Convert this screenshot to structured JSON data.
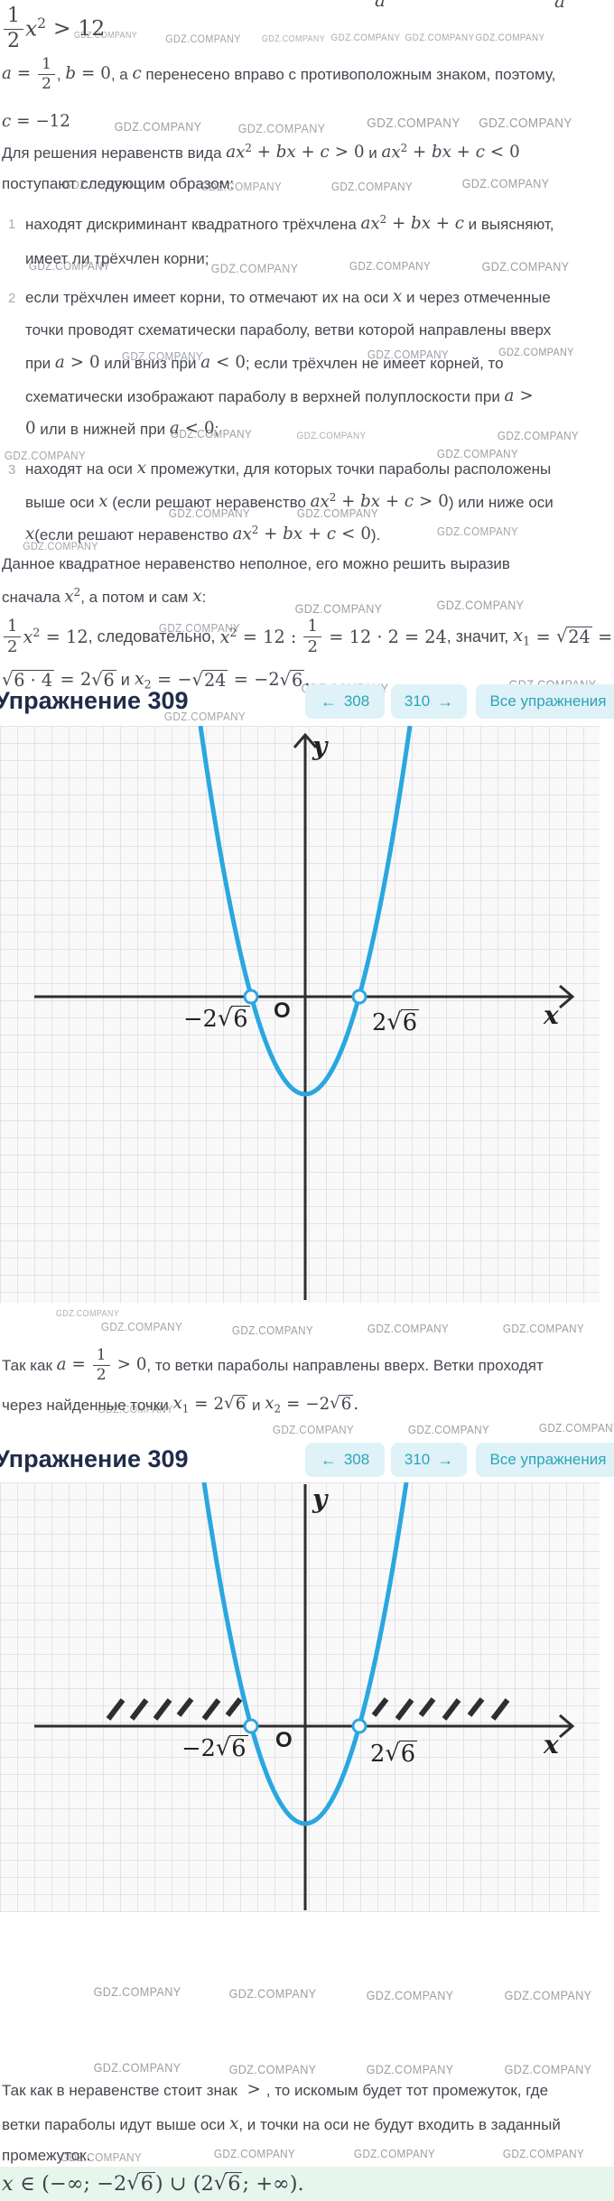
{
  "watermark": {
    "text": "GDZ.COMPANY"
  },
  "colors": {
    "parabola": "#2aa7e0",
    "button_bg": "#def2f7",
    "button_text": "#2ba4bb",
    "answer_bg": "#e7f6ed",
    "heading": "#202c49",
    "text": "#44484f",
    "axis": "#2e2e30",
    "watermark": "#84878c",
    "grid_line": "#e3e3e6",
    "graph_bg": "#f9f9fa"
  },
  "exercise": {
    "title": "Упражнение 309",
    "prev_arrow": "←",
    "prev": "308",
    "next": "310",
    "next_arrow": "→",
    "all_label": "Все упражнения"
  },
  "fragments": [
    "a",
    "a"
  ],
  "step_numbers": [
    "1",
    "2",
    "3"
  ],
  "text_lines": [
    {
      "segs": [
        {
          "k": "f",
          "n": "1",
          "d": "2"
        },
        {
          "k": "p",
          "b": "x",
          "e": "2"
        },
        {
          "k": "o",
          "v": ">"
        },
        {
          "k": "r",
          "v": "12"
        }
      ]
    },
    {
      "segs": [
        {
          "k": "m",
          "v": "a"
        },
        {
          "k": "o",
          "v": "="
        },
        {
          "k": "f",
          "n": "1",
          "d": "2"
        },
        {
          "k": "t",
          "v": ", "
        },
        {
          "k": "m",
          "v": "b"
        },
        {
          "k": "o",
          "v": "="
        },
        {
          "k": "r",
          "v": "0"
        },
        {
          "k": "t",
          "v": ", а "
        },
        {
          "k": "m",
          "v": "c"
        },
        {
          "k": "t",
          "v": " перенесено вправо с противоположным знаком, поэтому,"
        }
      ]
    },
    {
      "segs": [
        {
          "k": "m",
          "v": "c"
        },
        {
          "k": "o",
          "v": "="
        },
        {
          "k": "r",
          "v": "−12"
        }
      ]
    },
    {
      "segs": [
        {
          "k": "t",
          "v": "Для решения неравенств вида "
        },
        {
          "k": "m",
          "v": "a"
        },
        {
          "k": "p",
          "b": "x",
          "e": "2"
        },
        {
          "k": "r",
          "v": " + "
        },
        {
          "k": "m",
          "v": "bx"
        },
        {
          "k": "r",
          "v": " + "
        },
        {
          "k": "m",
          "v": "c"
        },
        {
          "k": "o",
          "v": ">"
        },
        {
          "k": "r",
          "v": "0"
        },
        {
          "k": "t",
          "v": " и "
        },
        {
          "k": "m",
          "v": "a"
        },
        {
          "k": "p",
          "b": "x",
          "e": "2"
        },
        {
          "k": "r",
          "v": " + "
        },
        {
          "k": "m",
          "v": "bx"
        },
        {
          "k": "r",
          "v": " + "
        },
        {
          "k": "m",
          "v": "c"
        },
        {
          "k": "o",
          "v": "<"
        },
        {
          "k": "r",
          "v": "0"
        }
      ]
    },
    {
      "segs": [
        {
          "k": "t",
          "v": "поступают следующим образом:"
        }
      ]
    },
    {
      "segs": [
        {
          "k": "t",
          "v": "находят дискриминант квадратного трёхчлена "
        },
        {
          "k": "m",
          "v": "a"
        },
        {
          "k": "p",
          "b": "x",
          "e": "2"
        },
        {
          "k": "r",
          "v": " + "
        },
        {
          "k": "m",
          "v": "bx"
        },
        {
          "k": "r",
          "v": " + "
        },
        {
          "k": "m",
          "v": "c"
        },
        {
          "k": "t",
          "v": " и выясняют,"
        }
      ]
    },
    {
      "segs": [
        {
          "k": "t",
          "v": "имеет ли трёхчлен корни;"
        }
      ]
    },
    {
      "segs": [
        {
          "k": "t",
          "v": "если трёхчлен имеет корни, то отмечают их на оси "
        },
        {
          "k": "m",
          "v": "x"
        },
        {
          "k": "t",
          "v": " и через отмеченные"
        }
      ]
    },
    {
      "segs": [
        {
          "k": "t",
          "v": "точки проводят схематически параболу, ветви которой направлены вверх"
        }
      ]
    },
    {
      "segs": [
        {
          "k": "t",
          "v": "при "
        },
        {
          "k": "m",
          "v": "a"
        },
        {
          "k": "o",
          "v": ">"
        },
        {
          "k": "r",
          "v": "0"
        },
        {
          "k": "t",
          "v": " или вниз при "
        },
        {
          "k": "m",
          "v": "a"
        },
        {
          "k": "o",
          "v": "<"
        },
        {
          "k": "r",
          "v": "0"
        },
        {
          "k": "t",
          "v": "; если трёхчлен не имеет корней, то"
        }
      ]
    },
    {
      "segs": [
        {
          "k": "t",
          "v": "схематически изображают параболу в верхней полуплоскости при "
        },
        {
          "k": "m",
          "v": "a"
        },
        {
          "k": "o",
          "v": ">"
        }
      ]
    },
    {
      "segs": [
        {
          "k": "r",
          "v": "0"
        },
        {
          "k": "t",
          "v": " или в нижней при "
        },
        {
          "k": "m",
          "v": "a"
        },
        {
          "k": "o",
          "v": "<"
        },
        {
          "k": "r",
          "v": "0"
        },
        {
          "k": "t",
          "v": ";"
        }
      ]
    },
    {
      "segs": [
        {
          "k": "t",
          "v": "находят на оси "
        },
        {
          "k": "m",
          "v": "x"
        },
        {
          "k": "t",
          "v": " промежутки, для которых точки параболы расположены"
        }
      ]
    },
    {
      "segs": [
        {
          "k": "t",
          "v": "выше оси "
        },
        {
          "k": "m",
          "v": "x"
        },
        {
          "k": "t",
          "v": " (если решают неравенство "
        },
        {
          "k": "m",
          "v": "a"
        },
        {
          "k": "p",
          "b": "x",
          "e": "2"
        },
        {
          "k": "r",
          "v": " + "
        },
        {
          "k": "m",
          "v": "bx"
        },
        {
          "k": "r",
          "v": " + "
        },
        {
          "k": "m",
          "v": "c"
        },
        {
          "k": "o",
          "v": ">"
        },
        {
          "k": "r",
          "v": "0"
        },
        {
          "k": "t",
          "v": ") или ниже оси"
        }
      ]
    },
    {
      "segs": [
        {
          "k": "m",
          "v": "x"
        },
        {
          "k": "t",
          "v": "(если решают неравенство "
        },
        {
          "k": "m",
          "v": "a"
        },
        {
          "k": "p",
          "b": "x",
          "e": "2"
        },
        {
          "k": "r",
          "v": " + "
        },
        {
          "k": "m",
          "v": "bx"
        },
        {
          "k": "r",
          "v": " + "
        },
        {
          "k": "m",
          "v": "c"
        },
        {
          "k": "o",
          "v": "<"
        },
        {
          "k": "r",
          "v": "0"
        },
        {
          "k": "t",
          "v": ")."
        }
      ]
    },
    {
      "segs": [
        {
          "k": "t",
          "v": "Данное квадратное неравенство неполное, его можно решить выразив"
        }
      ]
    },
    {
      "segs": [
        {
          "k": "t",
          "v": "сначала "
        },
        {
          "k": "p",
          "b": "x",
          "e": "2"
        },
        {
          "k": "t",
          "v": ", а потом и сам "
        },
        {
          "k": "m",
          "v": "x"
        },
        {
          "k": "t",
          "v": ":"
        }
      ]
    },
    {
      "segs": [
        {
          "k": "f",
          "n": "1",
          "d": "2"
        },
        {
          "k": "p",
          "b": "x",
          "e": "2"
        },
        {
          "k": "o",
          "v": "="
        },
        {
          "k": "r",
          "v": "12"
        },
        {
          "k": "t",
          "v": ", следовательно, "
        },
        {
          "k": "p",
          "b": "x",
          "e": "2"
        },
        {
          "k": "o",
          "v": "="
        },
        {
          "k": "r",
          "v": "12 : "
        },
        {
          "k": "f",
          "n": "1",
          "d": "2"
        },
        {
          "k": "o",
          "v": "="
        },
        {
          "k": "r",
          "v": "12 · 2 = 24"
        },
        {
          "k": "t",
          "v": ", значит, "
        },
        {
          "k": "b",
          "b": "x",
          "s": "1"
        },
        {
          "k": "o",
          "v": "="
        },
        {
          "k": "q",
          "v": "24"
        },
        {
          "k": "o",
          "v": "="
        }
      ]
    },
    {
      "segs": [
        {
          "k": "q",
          "v": "6 · 4"
        },
        {
          "k": "o",
          "v": "="
        },
        {
          "k": "r",
          "v": "2"
        },
        {
          "k": "q",
          "v": "6"
        },
        {
          "k": "t",
          "v": " и "
        },
        {
          "k": "b",
          "b": "x",
          "s": "2"
        },
        {
          "k": "o",
          "v": "="
        },
        {
          "k": "r",
          "v": "−"
        },
        {
          "k": "q",
          "v": "24"
        },
        {
          "k": "o",
          "v": "="
        },
        {
          "k": "r",
          "v": "−2"
        },
        {
          "k": "q",
          "v": "6"
        },
        {
          "k": "r",
          "v": "."
        }
      ]
    },
    {
      "segs": [
        {
          "k": "t",
          "v": "Так как "
        },
        {
          "k": "m",
          "v": "a"
        },
        {
          "k": "o",
          "v": "="
        },
        {
          "k": "f",
          "n": "1",
          "d": "2"
        },
        {
          "k": "o",
          "v": ">"
        },
        {
          "k": "r",
          "v": "0"
        },
        {
          "k": "t",
          "v": ", то ветки параболы направлены вверх. Ветки проходят"
        }
      ]
    },
    {
      "segs": [
        {
          "k": "t",
          "v": "через найденные точки "
        },
        {
          "k": "b",
          "b": "x",
          "s": "1"
        },
        {
          "k": "o",
          "v": "="
        },
        {
          "k": "r",
          "v": "2"
        },
        {
          "k": "q",
          "v": "6"
        },
        {
          "k": "t",
          "v": " и "
        },
        {
          "k": "b",
          "b": "x",
          "s": "2"
        },
        {
          "k": "o",
          "v": "="
        },
        {
          "k": "r",
          "v": "−2"
        },
        {
          "k": "q",
          "v": "6"
        },
        {
          "k": "r",
          "v": "."
        }
      ]
    },
    {
      "segs": [
        {
          "k": "t",
          "v": "Так как в неравенстве стоит знак "
        },
        {
          "k": "o",
          "v": ">"
        },
        {
          "k": "t",
          "v": ", то искомым будет тот промежуток, где"
        }
      ]
    },
    {
      "segs": [
        {
          "k": "t",
          "v": "ветки параболы идут выше оси "
        },
        {
          "k": "m",
          "v": "x"
        },
        {
          "k": "t",
          "v": ", и точки на оси не будут входить в заданный"
        }
      ]
    },
    {
      "segs": [
        {
          "k": "t",
          "v": "промежуток."
        }
      ]
    }
  ],
  "answer": {
    "segs": [
      {
        "k": "m",
        "v": "x"
      },
      {
        "k": "o",
        "v": "∈"
      },
      {
        "k": "r",
        "v": "(−∞; −2"
      },
      {
        "k": "q",
        "v": "6"
      },
      {
        "k": "r",
        "v": ") ∪ (2"
      },
      {
        "k": "q",
        "v": "6"
      },
      {
        "k": "r",
        "v": "; +∞)."
      }
    ]
  },
  "graph": {
    "y_label": "y",
    "x_label": "x",
    "origin_label": "O",
    "neg_root": {
      "segs": [
        {
          "k": "r",
          "v": "−2"
        },
        {
          "k": "q",
          "v": "6"
        }
      ]
    },
    "pos_root": {
      "segs": [
        {
          "k": "r",
          "v": "2"
        },
        {
          "k": "q",
          "v": "6"
        }
      ]
    }
  },
  "chart_data": [
    {
      "type": "line",
      "description": "schematic upward parabola crossing x-axis at two marked points",
      "x_axis_label": "x",
      "y_axis_label": "y",
      "origin_label": "O",
      "roots": [
        "−2√6",
        "2√6"
      ],
      "parabola_direction": "up",
      "marked_points": [
        "−2√6",
        "2√6"
      ],
      "hatched_intervals": [],
      "grid": true
    },
    {
      "type": "line",
      "description": "same schematic parabola with solution intervals hatched above the x-axis",
      "x_axis_label": "x",
      "y_axis_label": "y",
      "origin_label": "O",
      "roots": [
        "−2√6",
        "2√6"
      ],
      "parabola_direction": "up",
      "marked_points": [
        "−2√6",
        "2√6"
      ],
      "hatched_intervals": [
        "(−∞; −2√6)",
        "(2√6; +∞)"
      ],
      "grid": true
    }
  ]
}
